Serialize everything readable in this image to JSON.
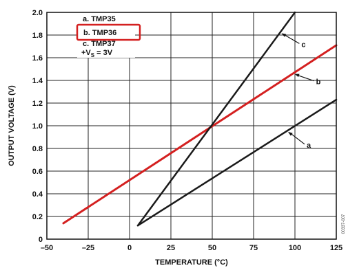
{
  "chart_data": {
    "type": "line",
    "xlabel": "TEMPERATURE (°C)",
    "ylabel": "OUTPUT VOLTAGE (V)",
    "xlim": [
      -50,
      125
    ],
    "ylim": [
      0,
      2.0
    ],
    "x_ticks": [
      "–50",
      "–25",
      "0",
      "25",
      "50",
      "75",
      "100",
      "125"
    ],
    "y_ticks": [
      "0",
      "0.2",
      "0.4",
      "0.6",
      "0.8",
      "1.0",
      "1.2",
      "1.4",
      "1.6",
      "1.8",
      "2.0"
    ],
    "grid": true,
    "series": [
      {
        "name": "a",
        "x": [
          5,
          125
        ],
        "y": [
          0.12,
          1.23
        ],
        "color": "#1a1a1a"
      },
      {
        "name": "b",
        "x": [
          -40,
          125
        ],
        "y": [
          0.14,
          1.71
        ],
        "color": "#d42020"
      },
      {
        "name": "c",
        "x": [
          5,
          100
        ],
        "y": [
          0.12,
          2.0
        ],
        "color": "#1a1a1a"
      }
    ],
    "annotations": [
      {
        "label": "a",
        "target_series": "a"
      },
      {
        "label": "b",
        "target_series": "b"
      },
      {
        "label": "c",
        "target_series": "c"
      }
    ],
    "legend": {
      "placement": "top-left",
      "items": [
        "a. TMP35",
        "b. TMP36",
        "c. TMP37"
      ],
      "highlighted": "b. TMP36",
      "highlight_color": "#d42020",
      "supply_prefix": "+V",
      "supply_sub": "S",
      "supply_value": " = 3V"
    },
    "side_label": "00337-007"
  }
}
